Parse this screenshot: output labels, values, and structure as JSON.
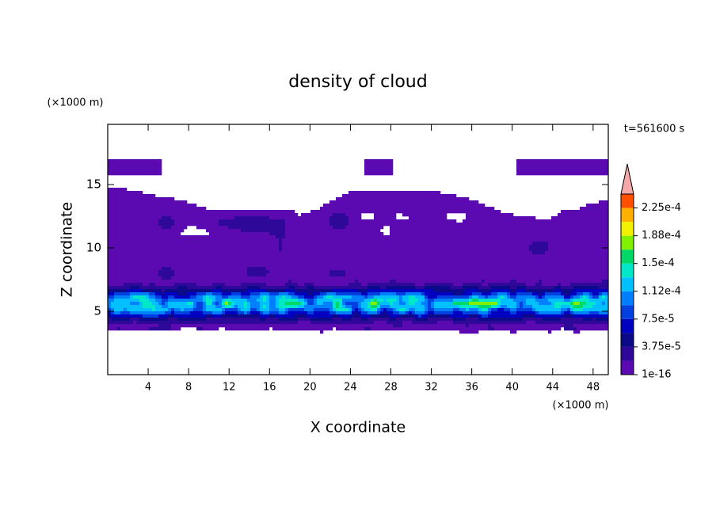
{
  "chart_data": {
    "type": "contour",
    "title": "density of cloud",
    "x_label": "X coordinate",
    "y_label": "Z coordinate",
    "x_unit": "(×1000 m)",
    "y_unit": "(×1000 m)",
    "time_label": "t=561600 s",
    "xlim": [
      0,
      49.5
    ],
    "ylim": [
      0,
      19.75
    ],
    "xticks": [
      4,
      8,
      12,
      16,
      20,
      24,
      28,
      32,
      36,
      40,
      44,
      48
    ],
    "yticks": [
      5,
      10,
      15
    ],
    "colorbar": {
      "lim": [
        0,
        0.00024375
      ],
      "ticks": [
        {
          "value": 1e-16,
          "label": "1e-16"
        },
        {
          "value": 3.75e-05,
          "label": "3.75e-5"
        },
        {
          "value": 7.5e-05,
          "label": "7.5e-5"
        },
        {
          "value": 0.0001125,
          "label": "1.12e-4"
        },
        {
          "value": 0.00015,
          "label": "1.5e-4"
        },
        {
          "value": 0.0001875,
          "label": "1.88e-4"
        },
        {
          "value": 0.000225,
          "label": "2.25e-4"
        }
      ],
      "colors": [
        "#5a0ab0",
        "#2e0898",
        "#0c0a88",
        "#0000c0",
        "#0040e0",
        "#0080ff",
        "#00c0ff",
        "#00e8c8",
        "#00d868",
        "#80f000",
        "#f0f000",
        "#ffb000",
        "#ff5000"
      ],
      "extend_color": "#f4a8a8"
    }
  }
}
